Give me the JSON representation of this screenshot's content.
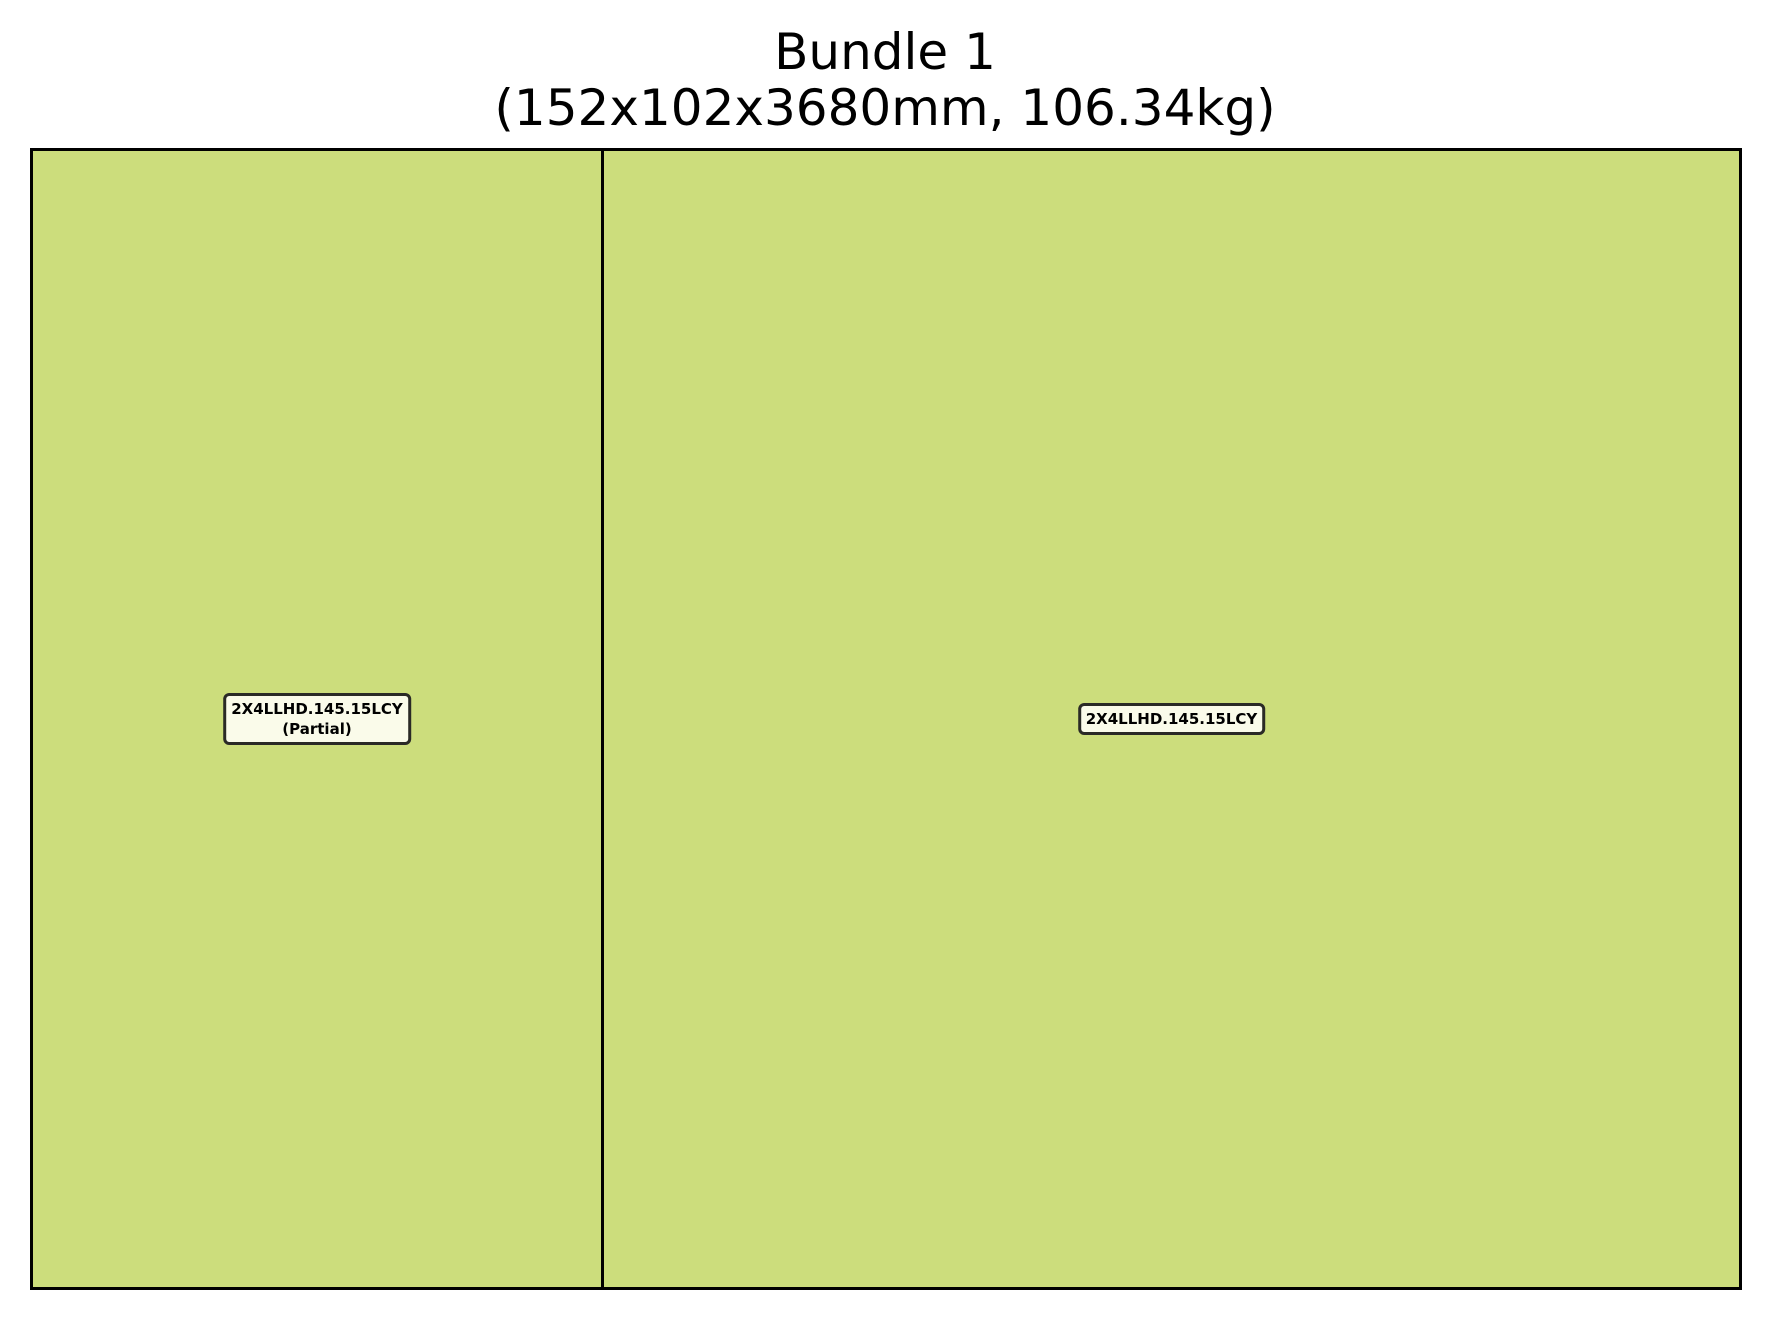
{
  "title": {
    "line1": "Bundle 1",
    "line2": "(152x102x3680mm, 106.34kg)"
  },
  "colors": {
    "piece_fill": "#ccdd7c",
    "tag_fill": "#fafbea",
    "border": "#000000"
  },
  "pieces": [
    {
      "code": "2X4LLHD.145.15LCY",
      "note": "(Partial)"
    },
    {
      "code": "2X4LLHD.145.15LCY",
      "note": ""
    }
  ]
}
